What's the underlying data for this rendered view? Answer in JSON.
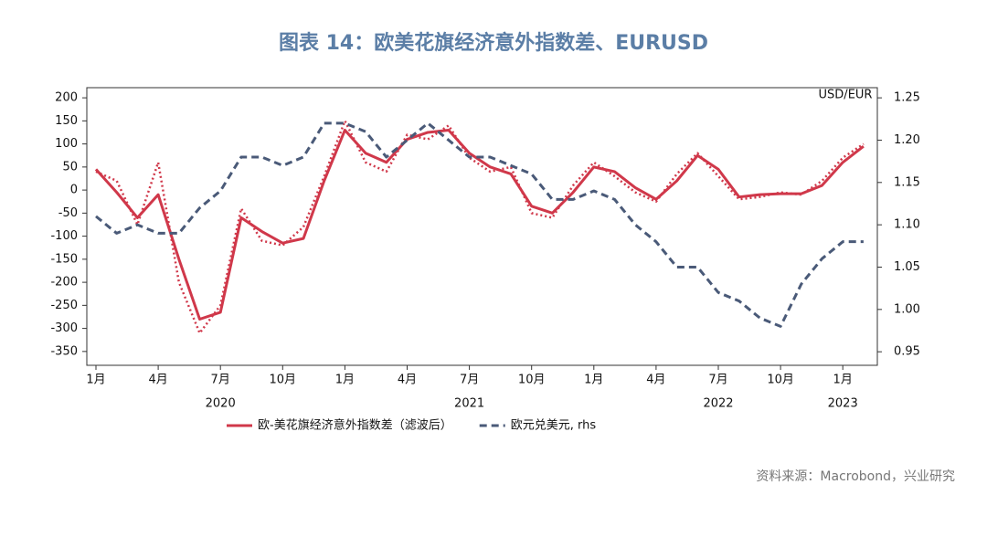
{
  "chart_data": {
    "type": "line",
    "title": "图表 14：欧美花旗经济意外指数差、EURUSD",
    "y2_label": "USD/EUR",
    "source": "资料来源：Macrobond，兴业研究",
    "x": [
      "2020-01",
      "2020-02",
      "2020-03",
      "2020-04",
      "2020-05",
      "2020-06",
      "2020-07",
      "2020-08",
      "2020-09",
      "2020-10",
      "2020-11",
      "2020-12",
      "2021-01",
      "2021-02",
      "2021-03",
      "2021-04",
      "2021-05",
      "2021-06",
      "2021-07",
      "2021-08",
      "2021-09",
      "2021-10",
      "2021-11",
      "2021-12",
      "2022-01",
      "2022-02",
      "2022-03",
      "2022-04",
      "2022-05",
      "2022-06",
      "2022-07",
      "2022-08",
      "2022-09",
      "2022-10",
      "2022-11",
      "2022-12",
      "2023-01",
      "2023-02"
    ],
    "xticks": [
      {
        "value": "2020-01",
        "label": "1月"
      },
      {
        "value": "2020-04",
        "label": "4月"
      },
      {
        "value": "2020-07",
        "label": "7月"
      },
      {
        "value": "2020-10",
        "label": "10月"
      },
      {
        "value": "2021-01",
        "label": "1月"
      },
      {
        "value": "2021-04",
        "label": "4月"
      },
      {
        "value": "2021-07",
        "label": "7月"
      },
      {
        "value": "2021-10",
        "label": "10月"
      },
      {
        "value": "2022-01",
        "label": "1月"
      },
      {
        "value": "2022-04",
        "label": "4月"
      },
      {
        "value": "2022-07",
        "label": "7月"
      },
      {
        "value": "2022-10",
        "label": "10月"
      },
      {
        "value": "2023-01",
        "label": "1月"
      }
    ],
    "year_labels": [
      {
        "value": "2020-07",
        "label": "2020"
      },
      {
        "value": "2021-07",
        "label": "2021"
      },
      {
        "value": "2022-07",
        "label": "2022"
      },
      {
        "value": "2023-01",
        "label": "2023"
      }
    ],
    "series": [
      {
        "name": "欧-美花旗经济意外指数差（滤波后）",
        "color": "#d0384a",
        "style": "solid",
        "values": [
          45,
          -5,
          -60,
          -10,
          -150,
          -280,
          -265,
          -60,
          -90,
          -115,
          -105,
          20,
          130,
          80,
          60,
          110,
          125,
          130,
          80,
          50,
          35,
          -35,
          -50,
          -5,
          50,
          40,
          5,
          -20,
          20,
          75,
          45,
          -15,
          -10,
          -8,
          -8,
          10,
          60,
          95
        ]
      },
      {
        "color": "#d0384a",
        "style": "dotted",
        "values": [
          40,
          20,
          -75,
          60,
          -200,
          -310,
          -250,
          -40,
          -110,
          -120,
          -80,
          30,
          150,
          60,
          40,
          120,
          110,
          140,
          70,
          40,
          50,
          -50,
          -60,
          10,
          60,
          30,
          -5,
          -25,
          35,
          80,
          30,
          -20,
          -15,
          -5,
          -10,
          20,
          70,
          100
        ]
      },
      {
        "name": "欧元兑美元, rhs",
        "color": "#4a5a78",
        "style": "dashed",
        "axis": "y2",
        "values": [
          1.11,
          1.09,
          1.1,
          1.09,
          1.09,
          1.12,
          1.14,
          1.18,
          1.18,
          1.17,
          1.18,
          1.22,
          1.22,
          1.21,
          1.18,
          1.2,
          1.22,
          1.2,
          1.18,
          1.18,
          1.17,
          1.16,
          1.13,
          1.13,
          1.14,
          1.13,
          1.1,
          1.08,
          1.05,
          1.05,
          1.02,
          1.01,
          0.99,
          0.98,
          1.03,
          1.06,
          1.08,
          1.08
        ]
      }
    ],
    "ylim": [
      -380,
      222
    ],
    "yticks": [
      -350,
      -300,
      -250,
      -200,
      -150,
      -100,
      -50,
      0,
      50,
      100,
      150,
      200
    ],
    "y2lim": [
      0.934,
      1.262
    ],
    "y2ticks": [
      0.95,
      1,
      1.05,
      1.1,
      1.15,
      1.2,
      1.25
    ],
    "y2_tick_labels": [
      "0.95",
      "1.00",
      "1.05",
      "1.10",
      "1.15",
      "1.20",
      "1.25"
    ]
  }
}
